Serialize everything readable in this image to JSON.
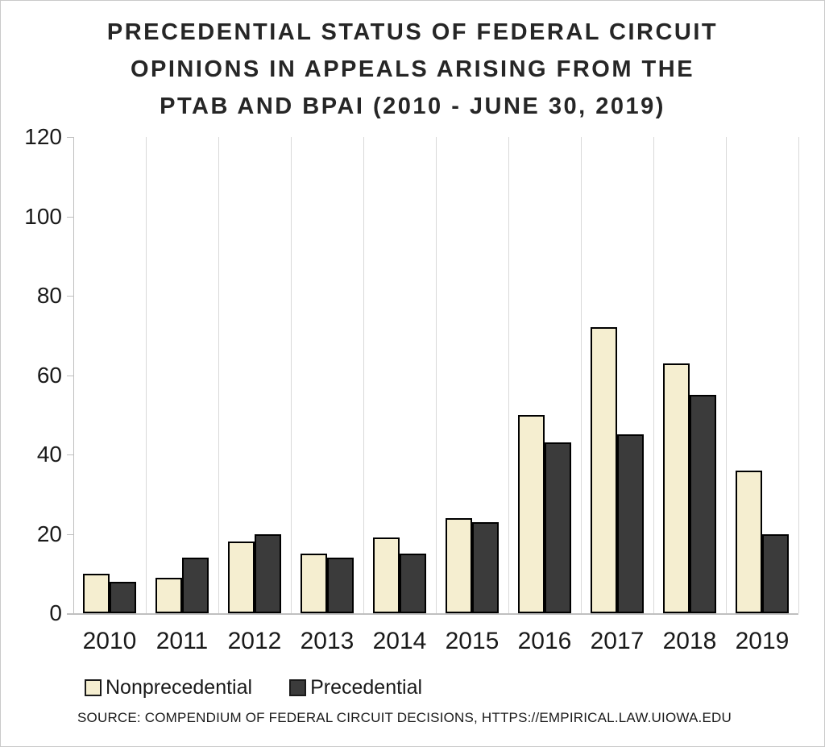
{
  "chart_data": {
    "type": "bar",
    "title": "PRECEDENTIAL STATUS OF FEDERAL CIRCUIT OPINIONS IN APPEALS ARISING FROM THE PTAB AND BPAI (2010 - JUNE 30, 2019)",
    "title_lines": [
      "PRECEDENTIAL STATUS OF FEDERAL CIRCUIT",
      "OPINIONS IN APPEALS ARISING FROM THE",
      "PTAB AND BPAI (2010 - JUNE 30, 2019)"
    ],
    "categories": [
      "2010",
      "2011",
      "2012",
      "2013",
      "2014",
      "2015",
      "2016",
      "2017",
      "2018",
      "2019"
    ],
    "series": [
      {
        "name": "Nonprecedential",
        "color": "#f5eed0",
        "values": [
          10,
          9,
          18,
          15,
          19,
          24,
          50,
          72,
          63,
          36
        ]
      },
      {
        "name": "Precedential",
        "color": "#3b3b3b",
        "values": [
          8,
          14,
          20,
          14,
          15,
          23,
          43,
          45,
          55,
          20
        ]
      }
    ],
    "xlabel": "",
    "ylabel": "",
    "ylim": [
      0,
      120
    ],
    "y_ticks": [
      0,
      20,
      40,
      60,
      80,
      100,
      120
    ],
    "grid": "vertical-category-boundaries",
    "legend_position": "bottom-left",
    "source": "SOURCE: COMPENDIUM OF FEDERAL CIRCUIT DECISIONS, HTTPS://EMPIRICAL.LAW.UIOWA.EDU"
  },
  "colors": {
    "background": "#ffffff",
    "figure_border": "#c9c9c9",
    "title_text": "#262626",
    "tick_text": "#1a1a1a",
    "gridline": "#d9d9d9",
    "axis_line": "#bfbfbf",
    "bar_border": "#000000",
    "nonprecedential_fill": "#f5eed0",
    "precedential_fill": "#3b3b3b"
  }
}
